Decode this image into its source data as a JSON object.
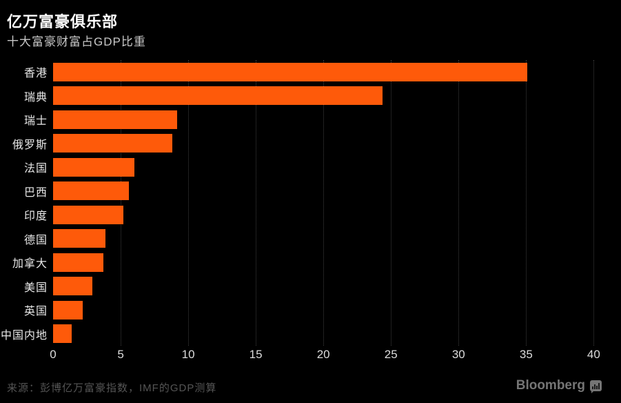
{
  "header": {
    "title": "亿万富豪俱乐部",
    "subtitle": "十大富豪财富占GDP比重"
  },
  "chart_data": {
    "type": "bar",
    "orientation": "horizontal",
    "title": "亿万富豪俱乐部",
    "subtitle": "十大富豪财富占GDP比重",
    "xlabel": "",
    "ylabel": "",
    "categories": [
      "香港",
      "瑞典",
      "瑞士",
      "俄罗斯",
      "法国",
      "巴西",
      "印度",
      "德国",
      "加拿大",
      "美国",
      "英国",
      "中国内地"
    ],
    "values": [
      35.1,
      24.4,
      9.2,
      8.8,
      6.0,
      5.6,
      5.2,
      3.9,
      3.7,
      2.9,
      2.2,
      1.4
    ],
    "xticks": [
      0,
      5,
      10,
      15,
      20,
      25,
      30,
      35,
      40
    ],
    "xlim": [
      0,
      41
    ],
    "grid": "vertical-dotted",
    "legend": "none",
    "bar_color": "#FE5A0A"
  },
  "footer": {
    "source": "来源：彭博亿万富豪指数，IMF的GDP测算",
    "brand": "Bloomberg"
  },
  "colors": {
    "background": "#000000",
    "title": "#FFFFFF",
    "subtitle": "#C9C9C9",
    "category_label": "#E8E8E8",
    "tick_label": "#DCDCDC",
    "gridline": "#3F3F3F",
    "bar": "#FE5A0A",
    "source_text": "#555555",
    "brand": "#757575"
  }
}
